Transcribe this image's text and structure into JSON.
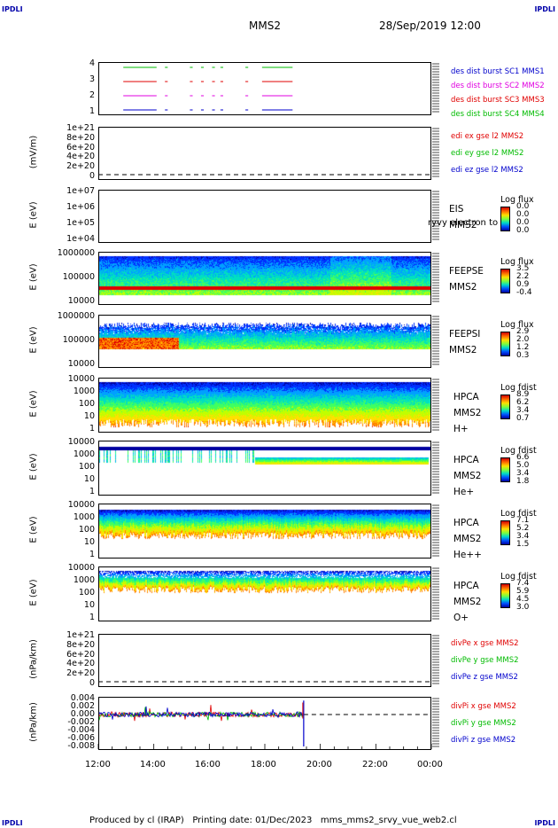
{
  "corners": {
    "tl": "IPDLI",
    "tr": "IPDLI",
    "bl": "IPDLI",
    "br": "IPDLI"
  },
  "header": {
    "title": "MMS2",
    "date": "28/Sep/2019 12:00"
  },
  "footer": "Produced by cl (IRAP)   Printing date: 01/Dec/2023   mms_mms2_srvy_vue_web2.cl",
  "x_ticks": [
    "12:00",
    "14:00",
    "16:00",
    "18:00",
    "20:00",
    "22:00",
    "00:00"
  ],
  "panels": [
    {
      "id": "burst",
      "ylabel": "",
      "ticks": [
        "4",
        "3",
        "2",
        "1"
      ],
      "legend": [
        {
          "text": "des dist burst SC1 MMS1",
          "color": "#0000cc"
        },
        {
          "text": "des dist burst SC2 MMS2",
          "color": "#e000e0"
        },
        {
          "text": "des dist burst SC3 MMS3",
          "color": "#e00000"
        },
        {
          "text": "des dist burst SC4 MMS4",
          "color": "#00bb00"
        }
      ]
    },
    {
      "id": "efield",
      "ylabel": "(mV/m)",
      "ticks": [
        "1e+21",
        "8e+20",
        "6e+20",
        "4e+20",
        "2e+20",
        "0"
      ],
      "legend": [
        {
          "text": "edi ex gse l2 MMS2",
          "color": "#e00000"
        },
        {
          "text": "edi ey gse l2 MMS2",
          "color": "#00bb00"
        },
        {
          "text": "edi ez gse l2 MMS2",
          "color": "#0000cc"
        }
      ]
    },
    {
      "id": "eis",
      "ylabel": "E (eV)",
      "ticks": [
        "1e+07",
        "1e+06",
        "1e+05",
        "1e+04"
      ],
      "side": [
        "EIS",
        "MMS2"
      ],
      "overlay": "ryvy electron to",
      "cb_title": "Log flux",
      "cb_vals": [
        "0.0",
        "0.0",
        "0.0",
        "0.0"
      ]
    },
    {
      "id": "feepse",
      "ylabel": "E (eV)",
      "ticks": [
        "1000000",
        "100000",
        "10000"
      ],
      "side": [
        "FEEPSE",
        "MMS2"
      ],
      "cb_title": "Log flux",
      "cb_vals": [
        "3.5",
        "2.2",
        "0.9",
        "-0.4"
      ]
    },
    {
      "id": "feepsi",
      "ylabel": "E (eV)",
      "ticks": [
        "1000000",
        "100000",
        "10000"
      ],
      "side": [
        "FEEPSI",
        "MMS2"
      ],
      "cb_title": "Log flux",
      "cb_vals": [
        "2.9",
        "2.0",
        "1.2",
        "0.3"
      ]
    },
    {
      "id": "hpca_h",
      "ylabel": "E (eV)",
      "ticks": [
        "10000",
        "1000",
        "100",
        "10",
        "1"
      ],
      "side": [
        "HPCA",
        "MMS2",
        "H+"
      ],
      "cb_title": "Log fdist",
      "cb_vals": [
        "8.9",
        "6.2",
        "3.4",
        "0.7"
      ]
    },
    {
      "id": "hpca_he1",
      "ylabel": "E (eV)",
      "ticks": [
        "10000",
        "1000",
        "100",
        "10",
        "1"
      ],
      "side": [
        "HPCA",
        "MMS2",
        "He+"
      ],
      "cb_title": "Log fdist",
      "cb_vals": [
        "6.6",
        "5.0",
        "3.4",
        "1.8"
      ]
    },
    {
      "id": "hpca_he2",
      "ylabel": "E (eV)",
      "ticks": [
        "10000",
        "1000",
        "100",
        "10",
        "1"
      ],
      "side": [
        "HPCA",
        "MMS2",
        "He++"
      ],
      "cb_title": "Log fdist",
      "cb_vals": [
        "7.1",
        "5.2",
        "3.4",
        "1.5"
      ]
    },
    {
      "id": "hpca_o",
      "ylabel": "E (eV)",
      "ticks": [
        "10000",
        "1000",
        "100",
        "10",
        "1"
      ],
      "side": [
        "HPCA",
        "MMS2",
        "O+"
      ],
      "cb_title": "Log fdist",
      "cb_vals": [
        "7.4",
        "5.9",
        "4.5",
        "3.0"
      ]
    },
    {
      "id": "divpe",
      "ylabel": "(nPa/km)",
      "ticks": [
        "1e+21",
        "8e+20",
        "6e+20",
        "4e+20",
        "2e+20",
        "0"
      ],
      "legend": [
        {
          "text": "divPe x gse MMS2",
          "color": "#e00000"
        },
        {
          "text": "divPe y gse MMS2",
          "color": "#00bb00"
        },
        {
          "text": "divPe z gse MMS2",
          "color": "#0000cc"
        }
      ]
    },
    {
      "id": "divpi",
      "ylabel": "(nPa/km)",
      "ticks": [
        "0.004",
        "0.002",
        "0.000",
        "-0.002",
        "-0.004",
        "-0.006",
        "-0.008"
      ],
      "legend": [
        {
          "text": "divPi x gse MMS2",
          "color": "#e00000"
        },
        {
          "text": "divPi y gse MMS2",
          "color": "#00bb00"
        },
        {
          "text": "divPi z gse MMS2",
          "color": "#0000cc"
        }
      ]
    }
  ],
  "chart_data": {
    "type": "heatmap",
    "x_range": [
      "12:00",
      "00:00"
    ],
    "burst_segments_hours": [
      [
        12.9,
        14.1
      ],
      [
        14.4,
        14.5
      ],
      [
        15.3,
        15.4
      ],
      [
        15.7,
        15.8
      ],
      [
        16.1,
        16.2
      ],
      [
        16.4,
        16.5
      ],
      [
        17.3,
        17.4
      ],
      [
        17.9,
        19.0
      ]
    ],
    "divpi_ylim": [
      -0.008,
      0.004
    ],
    "divpi_data_end_hour": 19.4,
    "efield_ylim": [
      0,
      1e+21
    ],
    "divpe_ylim": [
      0,
      1e+21
    ]
  }
}
